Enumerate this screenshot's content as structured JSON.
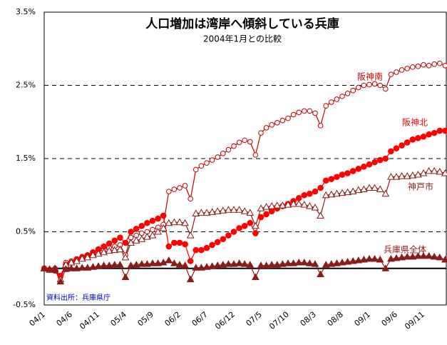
{
  "chart_data": {
    "type": "line",
    "title": "人口増加は湾岸へ傾斜している兵庫",
    "subtitle": "2004年1月との比較",
    "source": "資料出所：兵庫県庁",
    "categories": [
      "04/1",
      null,
      null,
      null,
      null,
      "04/6",
      null,
      null,
      null,
      null,
      "04/11",
      null,
      null,
      null,
      null,
      "05/4",
      null,
      null,
      null,
      null,
      "05/9",
      null,
      null,
      null,
      null,
      "06/2",
      null,
      null,
      null,
      null,
      "06/7",
      null,
      null,
      null,
      null,
      "06/12",
      null,
      null,
      null,
      null,
      "07/5",
      null,
      null,
      null,
      null,
      "07/10",
      null,
      null,
      null,
      null,
      "08/3",
      null,
      null,
      null,
      null,
      "08/8",
      null,
      null,
      null,
      null,
      "09/1",
      null,
      null,
      null,
      null,
      "09/6",
      null,
      null,
      null,
      null,
      "09/11",
      null,
      null,
      null,
      null
    ],
    "ylim": [
      -0.5,
      3.5
    ],
    "yticks": [
      {
        "value": -0.5,
        "label": "-0.5%"
      },
      {
        "value": 0.5,
        "label": "0.5%"
      },
      {
        "value": 1.5,
        "label": "1.5%"
      },
      {
        "value": 2.5,
        "label": "2.5%"
      },
      {
        "value": 3.5,
        "label": "3.5%"
      }
    ],
    "grid": true,
    "series": [
      {
        "name": "阪神南",
        "color": "#c00000",
        "marker": "circle-open",
        "values": [
          0.0,
          -0.02,
          0.0,
          -0.12,
          0.08,
          0.1,
          0.13,
          0.16,
          0.18,
          0.2,
          0.23,
          0.26,
          0.28,
          0.3,
          0.32,
          0.18,
          0.42,
          0.45,
          0.48,
          0.5,
          0.53,
          0.56,
          0.6,
          1.05,
          1.08,
          1.1,
          1.13,
          0.95,
          1.35,
          1.4,
          1.44,
          1.48,
          1.52,
          1.57,
          1.62,
          1.67,
          1.72,
          1.75,
          1.73,
          1.55,
          1.85,
          1.92,
          1.96,
          1.99,
          2.02,
          2.05,
          2.1,
          2.13,
          2.15,
          2.15,
          2.12,
          1.95,
          2.22,
          2.27,
          2.31,
          2.35,
          2.39,
          2.43,
          2.47,
          2.5,
          2.51,
          2.52,
          2.5,
          2.45,
          2.65,
          2.68,
          2.71,
          2.73,
          2.75,
          2.76,
          2.78,
          2.77,
          2.79,
          2.8,
          2.77
        ]
      },
      {
        "name": "阪神北",
        "color": "#ff0000",
        "marker": "circle-filled",
        "values": [
          0.0,
          -0.02,
          -0.03,
          -0.1,
          0.05,
          0.08,
          0.12,
          0.15,
          0.18,
          0.22,
          0.26,
          0.3,
          0.34,
          0.38,
          0.42,
          0.35,
          0.5,
          0.54,
          0.58,
          0.62,
          0.65,
          0.68,
          0.72,
          0.3,
          0.35,
          0.35,
          0.33,
          0.1,
          0.25,
          0.25,
          0.28,
          0.32,
          0.36,
          0.4,
          0.45,
          0.5,
          0.55,
          0.58,
          0.62,
          0.48,
          0.7,
          0.74,
          0.78,
          0.82,
          0.85,
          0.88,
          0.92,
          0.96,
          1.0,
          1.02,
          1.05,
          1.1,
          1.2,
          1.22,
          1.25,
          1.28,
          1.3,
          1.33,
          1.36,
          1.39,
          1.42,
          1.45,
          1.48,
          1.5,
          1.6,
          1.64,
          1.68,
          1.72,
          1.76,
          1.78,
          1.8,
          1.83,
          1.85,
          1.88,
          1.88
        ]
      },
      {
        "name": "神戸市",
        "color": "#8b1a1a",
        "marker": "triangle-open",
        "values": [
          0.0,
          -0.02,
          0.0,
          -0.15,
          0.05,
          0.08,
          0.1,
          0.13,
          0.15,
          0.18,
          0.2,
          0.22,
          0.24,
          0.25,
          0.26,
          0.15,
          0.35,
          0.38,
          0.4,
          0.43,
          0.45,
          0.5,
          0.55,
          0.62,
          0.63,
          0.63,
          0.62,
          0.45,
          0.75,
          0.76,
          0.76,
          0.77,
          0.78,
          0.79,
          0.8,
          0.8,
          0.8,
          0.78,
          0.76,
          0.58,
          0.82,
          0.84,
          0.85,
          0.86,
          0.86,
          0.87,
          0.88,
          0.88,
          0.87,
          0.85,
          0.83,
          0.72,
          1.0,
          1.01,
          1.02,
          1.03,
          1.04,
          1.05,
          1.07,
          1.08,
          1.1,
          1.1,
          1.08,
          1.02,
          1.25,
          1.25,
          1.26,
          1.26,
          1.27,
          1.28,
          1.3,
          1.33,
          1.33,
          1.32,
          1.3
        ]
      },
      {
        "name": "兵庫県全体",
        "color": "#8b1a1a",
        "marker": "triangle-filled",
        "values": [
          0.0,
          -0.01,
          -0.02,
          -0.18,
          -0.01,
          0.0,
          0.0,
          0.01,
          0.01,
          0.02,
          0.03,
          0.04,
          0.04,
          0.05,
          0.05,
          -0.12,
          0.04,
          0.05,
          0.06,
          0.06,
          0.07,
          0.07,
          0.08,
          0.11,
          0.07,
          0.05,
          0.04,
          -0.15,
          0.01,
          0.01,
          0.02,
          0.03,
          0.04,
          0.05,
          0.06,
          0.06,
          0.07,
          0.06,
          0.05,
          -0.12,
          0.04,
          0.04,
          0.05,
          0.05,
          0.06,
          0.07,
          0.07,
          0.08,
          0.08,
          0.07,
          0.06,
          -0.08,
          0.05,
          0.06,
          0.07,
          0.08,
          0.09,
          0.1,
          0.11,
          0.12,
          0.13,
          0.13,
          0.12,
          0.0,
          0.13,
          0.14,
          0.15,
          0.16,
          0.16,
          0.17,
          0.17,
          0.17,
          0.16,
          0.15,
          0.12
        ]
      }
    ]
  }
}
